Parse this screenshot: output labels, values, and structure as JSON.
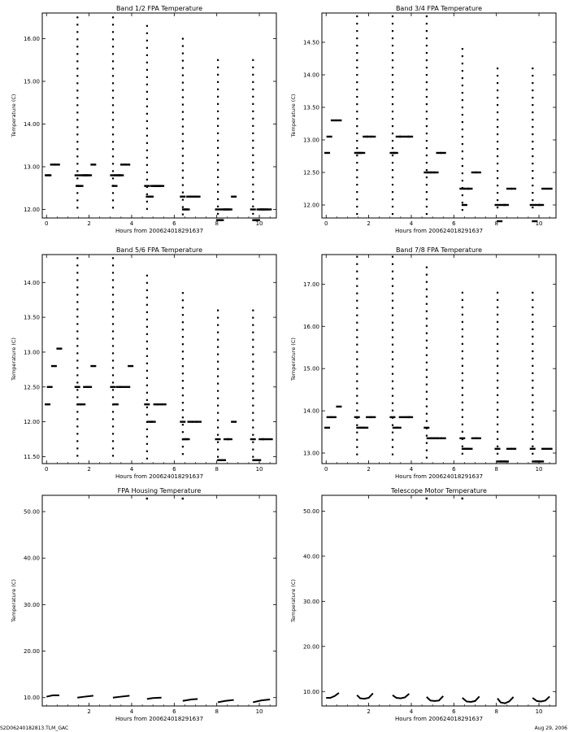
{
  "footer": {
    "left": "S2D06240182813.TLM_GAC",
    "right": "Aug 29, 2006"
  },
  "chart_data": [
    {
      "type": "scatter",
      "title": "Band 1/2 FPA Temperature",
      "xlabel": "Hours from 200624018291637",
      "ylabel": "Temperature (C)",
      "xlim": [
        -0.2,
        10.8
      ],
      "ylim": [
        11.8,
        16.6
      ],
      "xticks": [
        0,
        2,
        4,
        6,
        8,
        10
      ],
      "xtick_labels": [
        "0",
        "2",
        "4",
        "6",
        "8",
        "10"
      ],
      "yticks": [
        12,
        13,
        14,
        15,
        16
      ],
      "ytick_labels": [
        "12.00",
        "13.00",
        "14.00",
        "15.00",
        "16.00"
      ],
      "spikes": [
        [
          1.45,
          16.5
        ],
        [
          3.12,
          16.5
        ],
        [
          4.72,
          16.3
        ],
        [
          6.4,
          16.0
        ],
        [
          8.05,
          15.5
        ],
        [
          9.7,
          15.5
        ]
      ],
      "x": [
        0.05,
        0.1,
        0.3,
        0.5,
        1.45,
        1.5,
        1.6,
        1.7,
        1.8,
        1.9,
        2.0,
        2.2,
        3.12,
        3.2,
        3.3,
        3.4,
        3.5,
        3.6,
        3.8,
        4.72,
        4.8,
        4.9,
        5.0,
        5.1,
        5.2,
        5.3,
        5.4,
        6.4,
        6.5,
        6.6,
        6.7,
        6.8,
        6.9,
        7.0,
        7.1,
        8.05,
        8.1,
        8.2,
        8.3,
        8.4,
        8.5,
        8.6,
        8.8,
        9.7,
        9.8,
        9.9,
        10.0,
        10.1,
        10.2,
        10.3,
        10.45
      ],
      "y": [
        12.8,
        12.8,
        13.05,
        13.05,
        12.8,
        12.55,
        12.55,
        12.8,
        12.8,
        12.8,
        12.8,
        13.05,
        12.8,
        12.55,
        12.8,
        12.8,
        12.8,
        13.05,
        13.05,
        12.55,
        12.3,
        12.3,
        12.55,
        12.55,
        12.55,
        12.55,
        12.55,
        12.3,
        12.0,
        12.0,
        12.3,
        12.3,
        12.3,
        12.3,
        12.3,
        12.0,
        11.75,
        11.75,
        12.0,
        12.0,
        12.0,
        12.0,
        12.3,
        12.0,
        11.75,
        11.75,
        12.0,
        12.0,
        12.0,
        12.0,
        12.0
      ]
    },
    {
      "type": "scatter",
      "title": "Band 3/4 FPA Temperature",
      "xlabel": "Hours from 200624018291637",
      "ylabel": "Temperature (C)",
      "xlim": [
        -0.2,
        10.8
      ],
      "ylim": [
        11.8,
        14.95
      ],
      "xticks": [
        0,
        2,
        4,
        6,
        8,
        10
      ],
      "xtick_labels": [
        "0",
        "2",
        "4",
        "6",
        "8",
        "10"
      ],
      "yticks": [
        12,
        12.5,
        13,
        13.5,
        14,
        14.5
      ],
      "ytick_labels": [
        "12.00",
        "12.50",
        "13.00",
        "13.50",
        "14.00",
        "14.50"
      ],
      "spikes": [
        [
          1.45,
          14.9
        ],
        [
          3.12,
          14.9
        ],
        [
          4.72,
          14.9
        ],
        [
          6.4,
          14.4
        ],
        [
          8.05,
          14.1
        ],
        [
          9.7,
          14.1
        ]
      ],
      "x": [
        0.05,
        0.15,
        0.35,
        0.6,
        1.45,
        1.55,
        1.7,
        1.85,
        2.0,
        2.2,
        3.12,
        3.25,
        3.4,
        3.55,
        3.8,
        3.95,
        4.72,
        4.85,
        5.0,
        5.15,
        5.3,
        5.5,
        6.4,
        6.5,
        6.6,
        6.75,
        6.95,
        7.15,
        8.05,
        8.15,
        8.3,
        8.45,
        8.6,
        8.8,
        9.7,
        9.8,
        9.95,
        10.1,
        10.25,
        10.5
      ],
      "y": [
        12.8,
        13.05,
        13.3,
        13.3,
        12.8,
        12.8,
        12.8,
        13.05,
        13.05,
        13.05,
        12.8,
        12.8,
        13.05,
        13.05,
        13.05,
        13.05,
        12.5,
        12.5,
        12.5,
        12.5,
        12.8,
        12.8,
        12.25,
        12.0,
        12.25,
        12.25,
        12.5,
        12.5,
        12.0,
        11.75,
        12.0,
        12.0,
        12.25,
        12.25,
        12.0,
        11.75,
        12.0,
        12.0,
        12.25,
        12.25
      ]
    },
    {
      "type": "scatter",
      "title": "Band 5/6 FPA Temperature",
      "xlabel": "Hours from 200624018291637",
      "ylabel": "Temperature (C)",
      "xlim": [
        -0.2,
        10.8
      ],
      "ylim": [
        11.4,
        14.4
      ],
      "xticks": [
        0,
        2,
        4,
        6,
        8,
        10
      ],
      "xtick_labels": [
        "0",
        "2",
        "4",
        "6",
        "8",
        "10"
      ],
      "yticks": [
        11.5,
        12,
        12.5,
        13,
        13.5,
        14
      ],
      "ytick_labels": [
        "11.50",
        "12.00",
        "12.50",
        "13.00",
        "13.50",
        "14.00"
      ],
      "spikes": [
        [
          1.45,
          14.35
        ],
        [
          3.12,
          14.35
        ],
        [
          4.72,
          14.1
        ],
        [
          6.4,
          13.85
        ],
        [
          8.05,
          13.6
        ],
        [
          9.7,
          13.6
        ]
      ],
      "x": [
        0.05,
        0.15,
        0.35,
        0.6,
        1.45,
        1.55,
        1.7,
        1.85,
        2.0,
        2.2,
        3.12,
        3.25,
        3.4,
        3.55,
        3.8,
        3.95,
        4.72,
        4.85,
        5.0,
        5.15,
        5.3,
        5.5,
        6.4,
        6.5,
        6.6,
        6.75,
        6.95,
        7.15,
        8.05,
        8.15,
        8.3,
        8.45,
        8.6,
        8.8,
        9.7,
        9.8,
        9.95,
        10.1,
        10.25,
        10.5
      ],
      "y": [
        12.25,
        12.5,
        12.8,
        13.05,
        12.5,
        12.25,
        12.25,
        12.5,
        12.5,
        12.8,
        12.5,
        12.25,
        12.5,
        12.5,
        12.5,
        12.8,
        12.25,
        12.0,
        12.0,
        12.25,
        12.25,
        12.25,
        12.0,
        11.75,
        11.75,
        12.0,
        12.0,
        12.0,
        11.75,
        11.45,
        11.45,
        11.75,
        11.75,
        12.0,
        11.75,
        11.45,
        11.45,
        11.75,
        11.75,
        11.75
      ]
    },
    {
      "type": "scatter",
      "title": "Band 7/8 FPA Temperature",
      "xlabel": "Hours from 200624018291637",
      "ylabel": "Temperature (C)",
      "xlim": [
        -0.2,
        10.8
      ],
      "ylim": [
        12.75,
        17.7
      ],
      "xticks": [
        0,
        2,
        4,
        6,
        8,
        10
      ],
      "xtick_labels": [
        "0",
        "2",
        "4",
        "6",
        "8",
        "10"
      ],
      "yticks": [
        13,
        14,
        15,
        16,
        17
      ],
      "ytick_labels": [
        "13.00",
        "14.00",
        "15.00",
        "16.00",
        "17.00"
      ],
      "spikes": [
        [
          1.45,
          17.65
        ],
        [
          3.12,
          17.65
        ],
        [
          4.72,
          17.4
        ],
        [
          6.4,
          16.8
        ],
        [
          8.05,
          16.8
        ],
        [
          9.7,
          16.8
        ]
      ],
      "x": [
        0.05,
        0.15,
        0.35,
        0.6,
        1.45,
        1.55,
        1.7,
        1.85,
        2.0,
        2.2,
        3.12,
        3.25,
        3.4,
        3.55,
        3.8,
        3.95,
        4.72,
        4.85,
        5.0,
        5.15,
        5.3,
        5.5,
        6.4,
        6.5,
        6.6,
        6.75,
        6.95,
        7.15,
        8.05,
        8.15,
        8.3,
        8.45,
        8.6,
        8.8,
        9.7,
        9.8,
        9.95,
        10.1,
        10.25,
        10.5
      ],
      "y": [
        13.6,
        13.85,
        13.85,
        14.1,
        13.85,
        13.6,
        13.6,
        13.6,
        13.85,
        13.85,
        13.85,
        13.6,
        13.6,
        13.85,
        13.85,
        13.85,
        13.6,
        13.35,
        13.35,
        13.35,
        13.35,
        13.35,
        13.35,
        13.1,
        13.1,
        13.1,
        13.35,
        13.35,
        13.1,
        12.8,
        12.8,
        12.8,
        13.1,
        13.1,
        13.1,
        12.8,
        12.8,
        12.8,
        13.1,
        13.1
      ]
    },
    {
      "type": "line",
      "title": "FPA Housing Temperature",
      "xlabel": "Hours from 200624018291637",
      "ylabel": "Temperature (C)",
      "xlim": [
        -0.2,
        10.8
      ],
      "ylim": [
        8.2,
        53.5
      ],
      "xticks": [
        2,
        4,
        6,
        8,
        10
      ],
      "xtick_labels": [
        "2",
        "4",
        "6",
        "8",
        "10"
      ],
      "yticks": [
        10,
        20,
        30,
        40,
        50
      ],
      "ytick_labels": [
        "10.00",
        "20.00",
        "30.00",
        "40.00",
        "50.00"
      ],
      "outliers": [
        [
          4.72,
          52.8
        ],
        [
          6.4,
          52.8
        ]
      ],
      "segments": [
        {
          "x": [
            0.0,
            0.3,
            0.6
          ],
          "y": [
            10.2,
            10.5,
            10.5
          ]
        },
        {
          "x": [
            1.45,
            1.8,
            2.2
          ],
          "y": [
            10.0,
            10.2,
            10.4
          ]
        },
        {
          "x": [
            3.12,
            3.5,
            3.9
          ],
          "y": [
            10.0,
            10.2,
            10.4
          ]
        },
        {
          "x": [
            4.72,
            5.0,
            5.4
          ],
          "y": [
            9.7,
            9.9,
            10.0
          ]
        },
        {
          "x": [
            6.4,
            6.8,
            7.1
          ],
          "y": [
            9.3,
            9.6,
            9.7
          ]
        },
        {
          "x": [
            8.05,
            8.4,
            8.8
          ],
          "y": [
            9.0,
            9.3,
            9.5
          ]
        },
        {
          "x": [
            9.7,
            10.1,
            10.5
          ],
          "y": [
            9.0,
            9.4,
            9.6
          ]
        }
      ]
    },
    {
      "type": "line",
      "title": "Telescope Motor Temperature",
      "xlabel": "Hours from 200624018291637",
      "ylabel": "Temperature (C)",
      "xlim": [
        -0.2,
        10.8
      ],
      "ylim": [
        6.8,
        53.5
      ],
      "xticks": [
        2,
        4,
        6,
        8,
        10
      ],
      "xtick_labels": [
        "2",
        "4",
        "6",
        "8",
        "10"
      ],
      "yticks": [
        10,
        20,
        30,
        40,
        50
      ],
      "ytick_labels": [
        "10.00",
        "20.00",
        "30.00",
        "40.00",
        "50.00"
      ],
      "outliers": [
        [
          4.72,
          52.8
        ],
        [
          6.4,
          52.8
        ]
      ],
      "segments": [
        {
          "x": [
            0.0,
            0.2,
            0.4,
            0.6
          ],
          "y": [
            8.6,
            8.6,
            9.0,
            9.7
          ]
        },
        {
          "x": [
            1.45,
            1.6,
            1.8,
            2.0,
            2.2
          ],
          "y": [
            9.2,
            8.5,
            8.4,
            8.6,
            9.6
          ]
        },
        {
          "x": [
            3.12,
            3.3,
            3.5,
            3.7,
            3.9
          ],
          "y": [
            9.2,
            8.6,
            8.5,
            8.7,
            9.5
          ]
        },
        {
          "x": [
            4.72,
            4.9,
            5.1,
            5.3,
            5.5
          ],
          "y": [
            8.8,
            8.0,
            7.9,
            8.0,
            9.0
          ]
        },
        {
          "x": [
            6.4,
            6.6,
            6.8,
            7.0,
            7.2
          ],
          "y": [
            8.6,
            7.8,
            7.7,
            7.9,
            8.9
          ]
        },
        {
          "x": [
            8.05,
            8.2,
            8.4,
            8.6,
            8.8
          ],
          "y": [
            8.5,
            7.6,
            7.4,
            7.8,
            8.8
          ]
        },
        {
          "x": [
            9.7,
            9.9,
            10.1,
            10.3,
            10.5
          ],
          "y": [
            8.6,
            7.9,
            7.8,
            8.0,
            8.9
          ]
        }
      ]
    }
  ]
}
